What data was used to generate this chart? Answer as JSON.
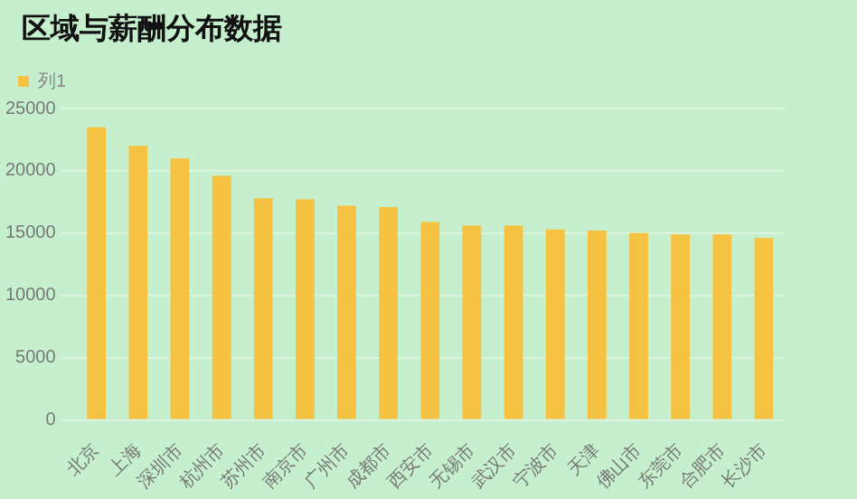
{
  "chart_data": {
    "type": "bar",
    "title": "区域与薪酬分布数据",
    "categories": [
      "北京",
      "上海",
      "深圳市",
      "杭州市",
      "苏州市",
      "南京市",
      "广州市",
      "成都市",
      "西安市",
      "无锡市",
      "武汉市",
      "宁波市",
      "天津",
      "佛山市",
      "东莞市",
      "合肥市",
      "长沙市"
    ],
    "series": [
      {
        "name": "列1",
        "color": "#f5c242",
        "values": [
          23500,
          22000,
          21000,
          19600,
          17800,
          17700,
          17200,
          17100,
          15900,
          15600,
          15600,
          15300,
          15200,
          15000,
          14900,
          14900,
          14600
        ]
      }
    ],
    "ylim": [
      0,
      25000
    ],
    "yticks": [
      0,
      5000,
      10000,
      15000,
      20000,
      25000
    ],
    "grid": "y",
    "legend": "top left"
  }
}
